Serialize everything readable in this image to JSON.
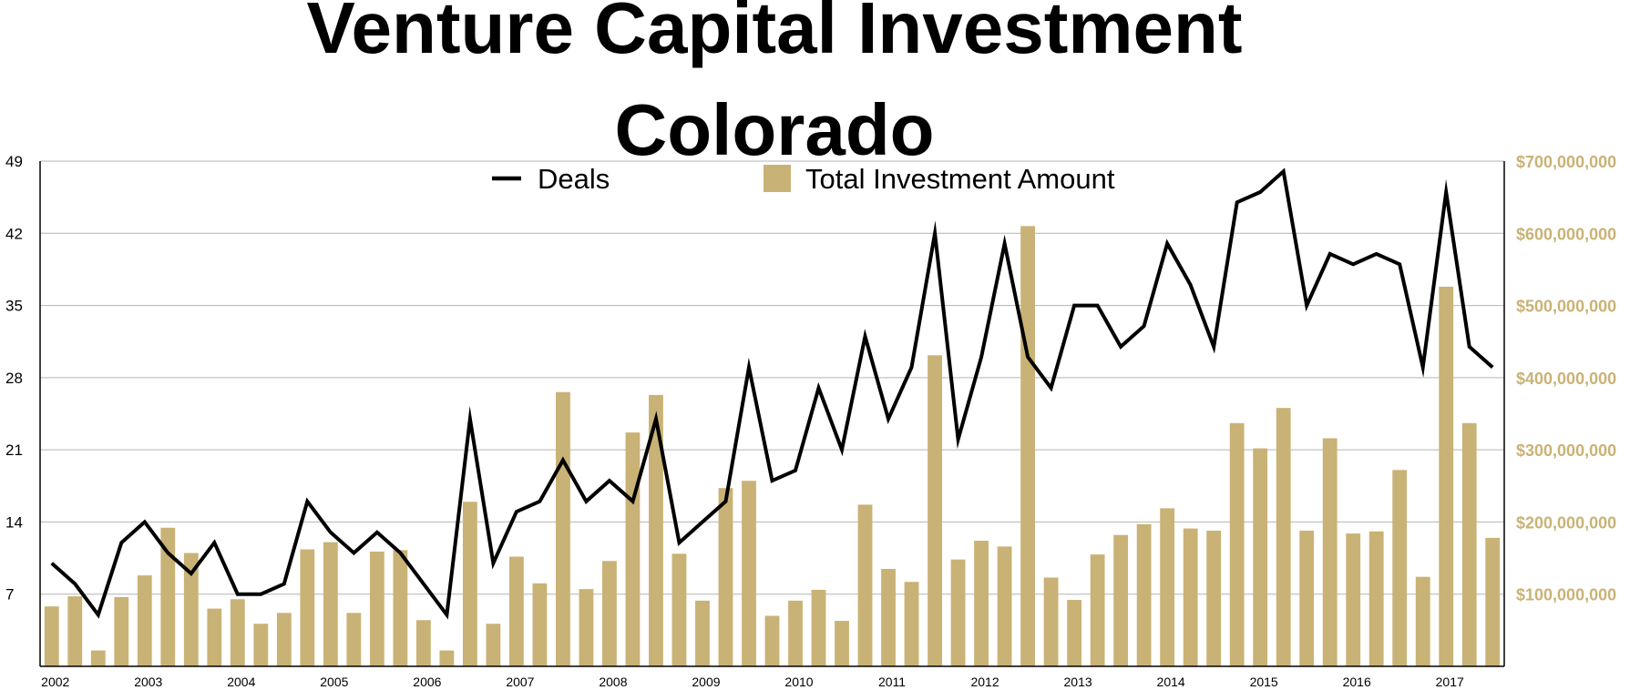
{
  "chart_data": {
    "type": "bar",
    "title": "Venture Capital Investment",
    "subtitle": "Colorado",
    "legend": {
      "placement": "top-center",
      "line_entry": "Deals",
      "bar_entry": "Total Investment Amount"
    },
    "colors": {
      "bars": "#c9b275",
      "line": "#000000",
      "grid": "#b4b4b4",
      "right_axis_text": "#c9b275"
    },
    "grid": true,
    "x_tick_labels": [
      "2002",
      "2003",
      "2004",
      "2005",
      "2006",
      "2007",
      "2008",
      "2009",
      "2010",
      "2011",
      "2012",
      "2013",
      "2014",
      "2015",
      "2016",
      "2017"
    ],
    "left_axis": {
      "ylim": [
        0,
        49
      ],
      "ticks": [
        7,
        14,
        21,
        28,
        35,
        42,
        49
      ],
      "tick_labels": [
        "7",
        "14",
        "21",
        "28",
        "35",
        "42",
        "49"
      ]
    },
    "right_axis": {
      "ylim": [
        0,
        700000000
      ],
      "ticks": [
        100000000,
        200000000,
        300000000,
        400000000,
        500000000,
        600000000,
        700000000
      ],
      "tick_labels": [
        "$100,000,000",
        "$200,000,000",
        "$300,000,000",
        "$400,000,000",
        "$500,000,000",
        "$600,000,000",
        "$700,000,000"
      ]
    },
    "categories": [
      "2002 Q1",
      "2002 Q2",
      "2002 Q3",
      "2002 Q4",
      "2003 Q1",
      "2003 Q2",
      "2003 Q3",
      "2003 Q4",
      "2004 Q1",
      "2004 Q2",
      "2004 Q3",
      "2004 Q4",
      "2005 Q1",
      "2005 Q2",
      "2005 Q3",
      "2005 Q4",
      "2006 Q1",
      "2006 Q2",
      "2006 Q3",
      "2006 Q4",
      "2007 Q1",
      "2007 Q2",
      "2007 Q3",
      "2007 Q4",
      "2008 Q1",
      "2008 Q2",
      "2008 Q3",
      "2008 Q4",
      "2009 Q1",
      "2009 Q2",
      "2009 Q3",
      "2009 Q4",
      "2010 Q1",
      "2010 Q2",
      "2010 Q3",
      "2010 Q4",
      "2011 Q1",
      "2011 Q2",
      "2011 Q3",
      "2011 Q4",
      "2012 Q1",
      "2012 Q2",
      "2012 Q3",
      "2012 Q4",
      "2013 Q1",
      "2013 Q2",
      "2013 Q3",
      "2013 Q4",
      "2014 Q1",
      "2014 Q2",
      "2014 Q3",
      "2014 Q4",
      "2015 Q1",
      "2015 Q2",
      "2015 Q3",
      "2015 Q4",
      "2016 Q1",
      "2016 Q2",
      "2016 Q3",
      "2016 Q4",
      "2017 Q1",
      "2017 Q2",
      "2017 Q3"
    ],
    "series": [
      {
        "name": "Total Investment Amount",
        "type": "bar",
        "axis": "right",
        "values": [
          83000000,
          97000000,
          22000000,
          96000000,
          126000000,
          192000000,
          157000000,
          80000000,
          93000000,
          59000000,
          74000000,
          162000000,
          172000000,
          74000000,
          159000000,
          161000000,
          64000000,
          22000000,
          228000000,
          59000000,
          152000000,
          115000000,
          380000000,
          107000000,
          146000000,
          324000000,
          376000000,
          156000000,
          91000000,
          247000000,
          257000000,
          70000000,
          91000000,
          106000000,
          63000000,
          224000000,
          135000000,
          117000000,
          431000000,
          148000000,
          174000000,
          166000000,
          610000000,
          123000000,
          92000000,
          155000000,
          182000000,
          197000000,
          219000000,
          191000000,
          188000000,
          337000000,
          302000000,
          358000000,
          188000000,
          316000000,
          184000000,
          187000000,
          272000000,
          124000000,
          526000000,
          337000000,
          178000000
        ]
      },
      {
        "name": "Deals",
        "type": "line",
        "axis": "left",
        "values": [
          10,
          8,
          5,
          12,
          14,
          11,
          9,
          12,
          7,
          7,
          8,
          16,
          13,
          11,
          13,
          11,
          8,
          5,
          24,
          10,
          15,
          16,
          20,
          16,
          18,
          16,
          24,
          12,
          14,
          16,
          29,
          18,
          19,
          27,
          21,
          32,
          24,
          29,
          42,
          22,
          30,
          41,
          30,
          27,
          35,
          35,
          31,
          33,
          41,
          37,
          31,
          45,
          46,
          48,
          35,
          40,
          39,
          40,
          39,
          29,
          46,
          31,
          29
        ]
      }
    ]
  }
}
